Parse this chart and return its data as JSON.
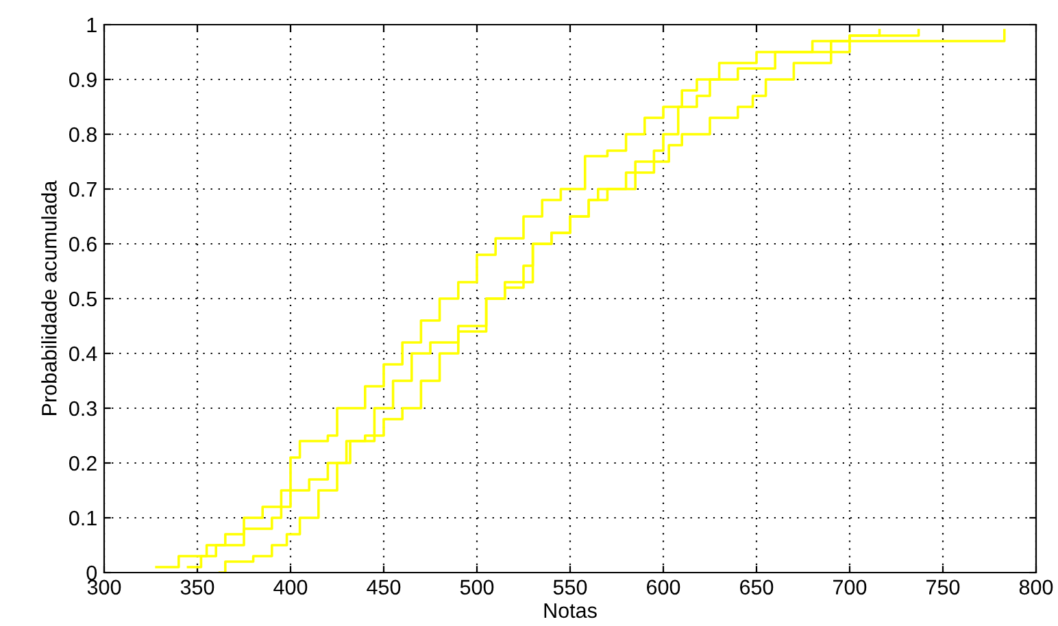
{
  "chart_data": {
    "type": "step",
    "xlabel": "Notas",
    "ylabel": "Probabilidade acumulada",
    "xlim": [
      300,
      800
    ],
    "ylim": [
      0,
      1
    ],
    "xticks": [
      300,
      350,
      400,
      450,
      500,
      550,
      600,
      650,
      700,
      750,
      800
    ],
    "yticks": [
      0,
      0.1,
      0.2,
      0.3,
      0.4,
      0.5,
      0.6,
      0.7,
      0.8,
      0.9,
      1
    ],
    "grid": true,
    "line_style": "solid",
    "marker": "none",
    "series": [
      {
        "color": "#ffff00",
        "x": [
          328,
          340,
          355,
          365,
          375,
          385,
          395,
          400,
          405,
          420,
          425,
          440,
          450,
          460,
          470,
          480,
          490,
          500,
          510,
          525,
          535,
          545,
          558,
          570,
          580,
          590,
          600,
          610,
          618,
          630,
          650,
          680,
          700,
          716
        ],
        "values": [
          0.01,
          0.03,
          0.05,
          0.07,
          0.1,
          0.12,
          0.15,
          0.21,
          0.24,
          0.25,
          0.3,
          0.34,
          0.38,
          0.42,
          0.46,
          0.5,
          0.53,
          0.58,
          0.61,
          0.65,
          0.68,
          0.7,
          0.76,
          0.77,
          0.8,
          0.83,
          0.85,
          0.88,
          0.9,
          0.93,
          0.95,
          0.97,
          0.98,
          0.99
        ]
      },
      {
        "color": "#ffff00",
        "x": [
          345,
          352,
          360,
          375,
          390,
          395,
          400,
          410,
          420,
          430,
          445,
          455,
          465,
          475,
          490,
          505,
          515,
          525,
          530,
          540,
          550,
          560,
          570,
          585,
          595,
          600,
          608,
          618,
          625,
          640,
          660,
          690,
          700,
          737
        ],
        "values": [
          0.01,
          0.03,
          0.05,
          0.08,
          0.1,
          0.12,
          0.15,
          0.17,
          0.2,
          0.24,
          0.3,
          0.35,
          0.4,
          0.42,
          0.45,
          0.5,
          0.52,
          0.56,
          0.6,
          0.62,
          0.65,
          0.68,
          0.7,
          0.75,
          0.77,
          0.8,
          0.85,
          0.87,
          0.9,
          0.92,
          0.95,
          0.97,
          0.98,
          0.99
        ]
      },
      {
        "color": "#ffff00",
        "x": [
          362,
          365,
          380,
          390,
          398,
          405,
          415,
          425,
          432,
          440,
          450,
          460,
          470,
          480,
          490,
          505,
          515,
          530,
          540,
          550,
          560,
          565,
          580,
          595,
          603,
          610,
          625,
          640,
          648,
          655,
          670,
          690,
          700,
          783
        ],
        "values": [
          0.0,
          0.02,
          0.03,
          0.05,
          0.07,
          0.1,
          0.15,
          0.2,
          0.24,
          0.25,
          0.28,
          0.3,
          0.35,
          0.4,
          0.44,
          0.5,
          0.53,
          0.6,
          0.62,
          0.65,
          0.68,
          0.7,
          0.73,
          0.75,
          0.78,
          0.8,
          0.83,
          0.85,
          0.87,
          0.9,
          0.93,
          0.95,
          0.97,
          0.99
        ]
      }
    ]
  }
}
